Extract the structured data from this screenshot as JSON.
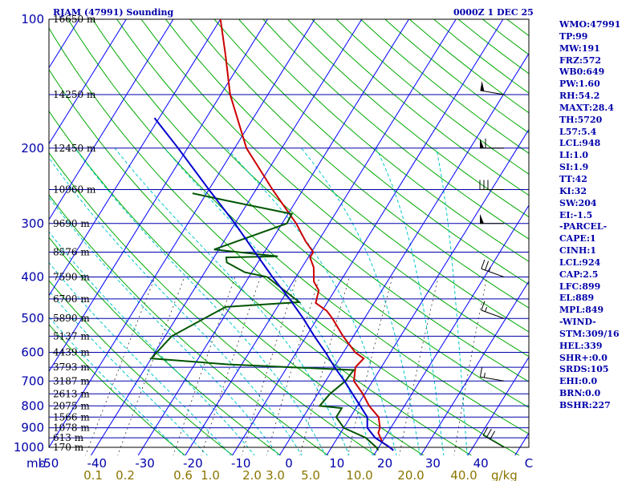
{
  "header": {
    "station_title": "RJAM (47991) Sounding",
    "valid_time": "0000Z  1 DEC 25"
  },
  "indices": [
    "WMO:47991",
    "TP:99",
    "MW:191",
    "FRZ:572",
    "WB0:649",
    "PW:1.60",
    "RH:54.2",
    "MAXT:28.4",
    "TH:5720",
    "L57:5.4",
    "LCL:948",
    "LI:1.0",
    "SI:1.9",
    "TT:42",
    "KI:32",
    "SW:204",
    "EI:-1.5",
    "-PARCEL-",
    "CAPE:1",
    "CINH:1",
    "LCL:924",
    "CAP:2.5",
    "LFC:899",
    "EL:889",
    "MPL:849",
    "-WIND-",
    "STM:309/16",
    "HEL:339",
    "SHR+:0.0",
    "SRDS:105",
    "EHI:0.0",
    "BRN:0.0",
    "BSHR:227"
  ],
  "colors": {
    "isobar": "#0000aa",
    "isotherm": "#0000ff",
    "dry_adiabat": "#00aa00",
    "moist_adiabat": "#00c8c8",
    "mixing_ratio": "#333333",
    "temperature": "#cc0000",
    "dewpoint": "#005500",
    "parcel": "#0000cc",
    "pressure_label": "#0000aa",
    "height_label": "#000000",
    "temp_tick": "#0000aa",
    "mixing_tick": "#8b7500",
    "wind_barb": "#000000"
  },
  "chart_data": {
    "type": "line",
    "chart_kind": "skew-T log-P sounding",
    "xlabel": "C",
    "ylabel": "mb",
    "mixing_ratio_unit": "g/kg",
    "xlim": [
      -50,
      50
    ],
    "ylim": [
      1000,
      100
    ],
    "y_scale": "log",
    "pressure_levels": [
      100,
      200,
      300,
      400,
      500,
      600,
      700,
      800,
      900,
      1000
    ],
    "temperature_ticks": [
      "-50",
      "-40",
      "-30",
      "-20",
      "-10",
      "0",
      "10",
      "20",
      "30",
      "40",
      "C"
    ],
    "mixing_ratio_ticks": [
      "0.1",
      "0.2",
      "0.6",
      "1.0",
      "2.0",
      "3.0",
      "5.0",
      "10.0",
      "20.0",
      "40.0"
    ],
    "height_levels": [
      {
        "p": 100,
        "label": "16650 m"
      },
      {
        "p": 150,
        "label": "14250 m"
      },
      {
        "p": 200,
        "label": "12450 m"
      },
      {
        "p": 250,
        "label": "10960 m"
      },
      {
        "p": 300,
        "label": "9690 m"
      },
      {
        "p": 350,
        "label": "8576 m"
      },
      {
        "p": 400,
        "label": "7590 m"
      },
      {
        "p": 450,
        "label": "6700 m"
      },
      {
        "p": 500,
        "label": "5890 m"
      },
      {
        "p": 550,
        "label": "5137 m"
      },
      {
        "p": 600,
        "label": "4439 m"
      },
      {
        "p": 650,
        "label": "3793 m"
      },
      {
        "p": 700,
        "label": "3187 m"
      },
      {
        "p": 750,
        "label": "2613 m"
      },
      {
        "p": 800,
        "label": "2075 m"
      },
      {
        "p": 850,
        "label": "1566 m"
      },
      {
        "p": 900,
        "label": "1078 m"
      },
      {
        "p": 950,
        "label": "613 m"
      },
      {
        "p": 1000,
        "label": "170 m"
      }
    ],
    "series": [
      {
        "key": "temperature",
        "points": [
          [
            1016,
            23.5
          ],
          [
            1000,
            22.3
          ],
          [
            975,
            20.2
          ],
          [
            925,
            18.0
          ],
          [
            900,
            17.7
          ],
          [
            850,
            16.0
          ],
          [
            800,
            12.5
          ],
          [
            750,
            9.6
          ],
          [
            700,
            6.0
          ],
          [
            650,
            4.5
          ],
          [
            620,
            5.1
          ],
          [
            600,
            2.5
          ],
          [
            550,
            -2.2
          ],
          [
            500,
            -6.8
          ],
          [
            480,
            -9.0
          ],
          [
            460,
            -12.4
          ],
          [
            430,
            -13.4
          ],
          [
            410,
            -15.6
          ],
          [
            380,
            -17.5
          ],
          [
            360,
            -19.6
          ],
          [
            350,
            -19.6
          ],
          [
            330,
            -22.7
          ],
          [
            300,
            -27.0
          ],
          [
            250,
            -36.5
          ],
          [
            200,
            -47.5
          ],
          [
            150,
            -58.0
          ],
          [
            120,
            -64.5
          ],
          [
            100,
            -70.0
          ]
        ]
      },
      {
        "key": "dewpoint",
        "points": [
          [
            1016,
            20.3
          ],
          [
            1000,
            19.5
          ],
          [
            950,
            16.0
          ],
          [
            900,
            10.0
          ],
          [
            850,
            7.0
          ],
          [
            810,
            7.0
          ],
          [
            800,
            2.0
          ],
          [
            750,
            2.6
          ],
          [
            700,
            4.2
          ],
          [
            660,
            4.5
          ],
          [
            640,
            -23.0
          ],
          [
            620,
            -40.0
          ],
          [
            550,
            -38.6
          ],
          [
            500,
            -34.0
          ],
          [
            470,
            -31.0
          ],
          [
            458,
            -16.0
          ],
          [
            400,
            -26.1
          ],
          [
            390,
            -31.5
          ],
          [
            370,
            -36.6
          ],
          [
            360,
            -37.4
          ],
          [
            358,
            -26.6
          ],
          [
            345,
            -41.0
          ],
          [
            300,
            -29.0
          ],
          [
            285,
            -29.2
          ],
          [
            265,
            -45.0
          ],
          [
            255,
            -53.0
          ]
        ]
      },
      {
        "key": "parcel",
        "points": [
          [
            1016,
            23.5
          ],
          [
            1000,
            22.4
          ],
          [
            950,
            18.0
          ],
          [
            900,
            15.0
          ],
          [
            850,
            13.6
          ],
          [
            800,
            10.6
          ],
          [
            750,
            7.4
          ],
          [
            700,
            4.0
          ],
          [
            650,
            0.1
          ],
          [
            600,
            -3.8
          ],
          [
            550,
            -8.3
          ],
          [
            500,
            -13.0
          ],
          [
            450,
            -18.5
          ],
          [
            400,
            -25.0
          ],
          [
            350,
            -32.0
          ],
          [
            300,
            -40.0
          ],
          [
            250,
            -50.0
          ],
          [
            200,
            -62.0
          ],
          [
            170,
            -71.0
          ]
        ]
      }
    ],
    "wind_barbs": [
      {
        "p": 1000,
        "dir": 300,
        "kt": 30
      },
      {
        "p": 700,
        "dir": 280,
        "kt": 15
      },
      {
        "p": 500,
        "dir": 290,
        "kt": 15
      },
      {
        "p": 400,
        "dir": 290,
        "kt": 25
      },
      {
        "p": 300,
        "dir": 270,
        "kt": 50
      },
      {
        "p": 250,
        "dir": 270,
        "kt": 30
      },
      {
        "p": 200,
        "dir": 270,
        "kt": 60
      },
      {
        "p": 150,
        "dir": 280,
        "kt": 50
      }
    ]
  }
}
